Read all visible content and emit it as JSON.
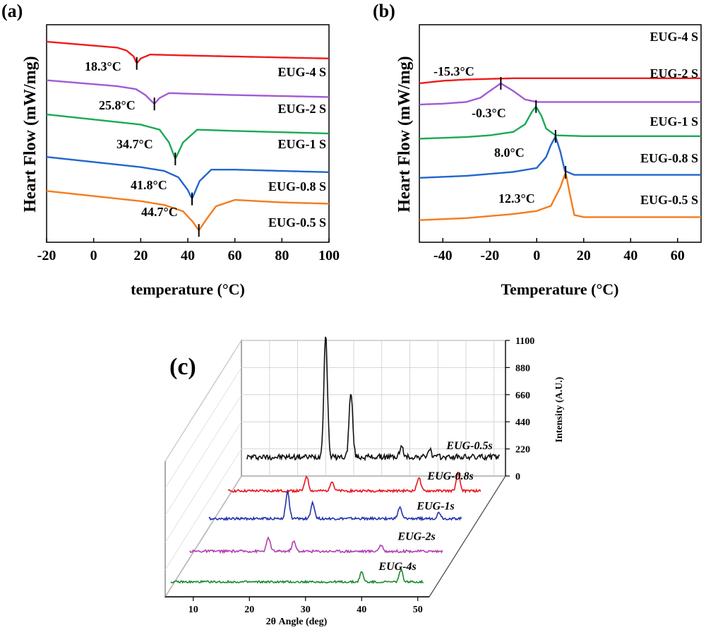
{
  "chart_data": [
    {
      "panel_label": "(a)",
      "type": "line",
      "xlabel": "temperature (°C)",
      "ylabel": "Heart Flow (mW/mg)",
      "xlim": [
        -20,
        100
      ],
      "xticks": [
        -20,
        0,
        20,
        40,
        60,
        80,
        100
      ],
      "series": [
        {
          "name": "EUG-4 S",
          "color": "#ee1c1c",
          "peak_x": 18.3,
          "peak_label": "18.3°C",
          "direction": "down",
          "x": [
            -20,
            -10,
            0,
            10,
            14,
            17,
            18.3,
            20,
            24,
            40,
            60,
            80,
            100
          ],
          "y": [
            0.7,
            0.66,
            0.62,
            0.58,
            0.52,
            0.4,
            0.26,
            0.36,
            0.44,
            0.42,
            0.4,
            0.38,
            0.36
          ]
        },
        {
          "name": "EUG-2 S",
          "color": "#a25ad6",
          "peak_x": 25.8,
          "peak_label": "25.8°C",
          "direction": "down",
          "x": [
            -20,
            -10,
            0,
            10,
            18,
            22,
            25.8,
            28,
            32,
            45,
            60,
            80,
            100
          ],
          "y": [
            0.72,
            0.68,
            0.64,
            0.6,
            0.54,
            0.42,
            0.24,
            0.36,
            0.46,
            0.44,
            0.42,
            0.4,
            0.38
          ]
        },
        {
          "name": "EUG-1 S",
          "color": "#1aaa55",
          "peak_x": 34.7,
          "peak_label": "34.7°C",
          "direction": "down",
          "x": [
            -20,
            -10,
            0,
            10,
            20,
            28,
            32,
            34.7,
            38,
            44,
            60,
            80,
            100
          ],
          "y": [
            0.8,
            0.76,
            0.72,
            0.68,
            0.64,
            0.56,
            0.36,
            0.1,
            0.36,
            0.56,
            0.54,
            0.52,
            0.5
          ]
        },
        {
          "name": "EUG-0.8 S",
          "color": "#2266cc",
          "peak_x": 41.8,
          "peak_label": "41.8°C",
          "direction": "down",
          "x": [
            -20,
            -10,
            0,
            10,
            20,
            30,
            36,
            40,
            41.8,
            45,
            50,
            60,
            80,
            100
          ],
          "y": [
            0.82,
            0.78,
            0.74,
            0.7,
            0.66,
            0.6,
            0.5,
            0.3,
            0.16,
            0.44,
            0.62,
            0.62,
            0.6,
            0.58
          ]
        },
        {
          "name": "EUG-0.5 S",
          "color": "#f47c1e",
          "peak_x": 44.7,
          "peak_label": "44.7°C",
          "direction": "down",
          "x": [
            -20,
            -10,
            0,
            10,
            20,
            30,
            38,
            42,
            44.7,
            48,
            52,
            60,
            80,
            100
          ],
          "y": [
            0.84,
            0.8,
            0.76,
            0.72,
            0.68,
            0.62,
            0.52,
            0.36,
            0.22,
            0.4,
            0.6,
            0.7,
            0.66,
            0.64
          ]
        }
      ]
    },
    {
      "panel_label": "(b)",
      "type": "line",
      "xlabel": "Temperature (°C)",
      "ylabel": "Heart Flow (mW/mg)",
      "xlim": [
        -50,
        70
      ],
      "xticks": [
        -40,
        -20,
        0,
        20,
        40,
        60
      ],
      "series": [
        {
          "name": "EUG-4 S",
          "color": "#ee1c1c",
          "peak_x": null,
          "peak_label": "",
          "direction": "flat",
          "x": [
            -50,
            -40,
            -30,
            -20,
            -10,
            0,
            10,
            20,
            40,
            60,
            70
          ],
          "y": [
            0.2,
            0.24,
            0.26,
            0.27,
            0.28,
            0.28,
            0.28,
            0.28,
            0.28,
            0.28,
            0.28
          ]
        },
        {
          "name": "EUG-2 S",
          "color": "#a25ad6",
          "peak_x": -15.3,
          "peak_label": "-15.3°C",
          "direction": "up",
          "x": [
            -50,
            -40,
            -30,
            -24,
            -20,
            -15.3,
            -10,
            -5,
            0,
            10,
            30,
            50,
            70
          ],
          "y": [
            0.1,
            0.12,
            0.16,
            0.26,
            0.42,
            0.6,
            0.42,
            0.22,
            0.16,
            0.16,
            0.16,
            0.16,
            0.16
          ]
        },
        {
          "name": "EUG-1 S",
          "color": "#1aaa55",
          "peak_x": -0.3,
          "peak_label": "-0.3°C",
          "direction": "up",
          "x": [
            -50,
            -40,
            -30,
            -20,
            -10,
            -5,
            -2,
            -0.3,
            2,
            4,
            8,
            20,
            40,
            70
          ],
          "y": [
            0.06,
            0.08,
            0.1,
            0.14,
            0.22,
            0.4,
            0.7,
            0.82,
            0.6,
            0.3,
            0.14,
            0.12,
            0.12,
            0.12
          ]
        },
        {
          "name": "EUG-0.8 S",
          "color": "#2266cc",
          "peak_x": 8.0,
          "peak_label": "8.0°C",
          "direction": "up",
          "x": [
            -50,
            -40,
            -30,
            -20,
            -10,
            0,
            4,
            6,
            8,
            10,
            12,
            16,
            30,
            70
          ],
          "y": [
            0.06,
            0.08,
            0.1,
            0.14,
            0.18,
            0.26,
            0.48,
            0.72,
            0.9,
            0.6,
            0.2,
            0.12,
            0.12,
            0.12
          ]
        },
        {
          "name": "EUG-0.5 S",
          "color": "#f47c1e",
          "peak_x": 12.3,
          "peak_label": "12.3°C",
          "direction": "up",
          "x": [
            -50,
            -40,
            -30,
            -20,
            -10,
            0,
            6,
            10,
            12.3,
            14,
            16,
            20,
            40,
            70
          ],
          "y": [
            0.06,
            0.08,
            0.1,
            0.14,
            0.18,
            0.24,
            0.34,
            0.7,
            1.0,
            0.6,
            0.16,
            0.12,
            0.12,
            0.12
          ]
        }
      ]
    },
    {
      "panel_label": "(c)",
      "type": "line",
      "projection": "3d",
      "xlabel": "2θ Angle (deg)",
      "zlabel": "Intensity (A.U.)",
      "xlim": [
        5,
        52
      ],
      "xticks": [
        10,
        20,
        30,
        40,
        50
      ],
      "zlim": [
        0,
        1100
      ],
      "zticks": [
        0,
        220,
        440,
        660,
        880,
        1100
      ],
      "series": [
        {
          "name": "EUG-0.5s",
          "color": "#111111",
          "peaks": [
            [
              20.0,
              1000
            ],
            [
              24.5,
              520
            ],
            [
              33.5,
              80
            ],
            [
              38.5,
              60
            ]
          ],
          "baseline": 40
        },
        {
          "name": "EUG-0.8s",
          "color": "#e8141c",
          "peaks": [
            [
              20.0,
              120
            ],
            [
              24.5,
              80
            ],
            [
              40.0,
              110
            ],
            [
              47.0,
              140
            ]
          ],
          "baseline": 10
        },
        {
          "name": "EUG-1s",
          "color": "#2233aa",
          "peaks": [
            [
              20.0,
              220
            ],
            [
              24.5,
              130
            ],
            [
              40.0,
              90
            ],
            [
              47.0,
              50
            ]
          ],
          "baseline": 30
        },
        {
          "name": "EUG-2s",
          "color": "#b040b0",
          "peaks": [
            [
              20.0,
              110
            ],
            [
              24.5,
              80
            ],
            [
              40.0,
              50
            ]
          ],
          "baseline": 10
        },
        {
          "name": "EUG-4s",
          "color": "#1a8a30",
          "peaks": [
            [
              40.0,
              80
            ],
            [
              47.0,
              100
            ]
          ],
          "baseline": 5
        }
      ]
    }
  ]
}
